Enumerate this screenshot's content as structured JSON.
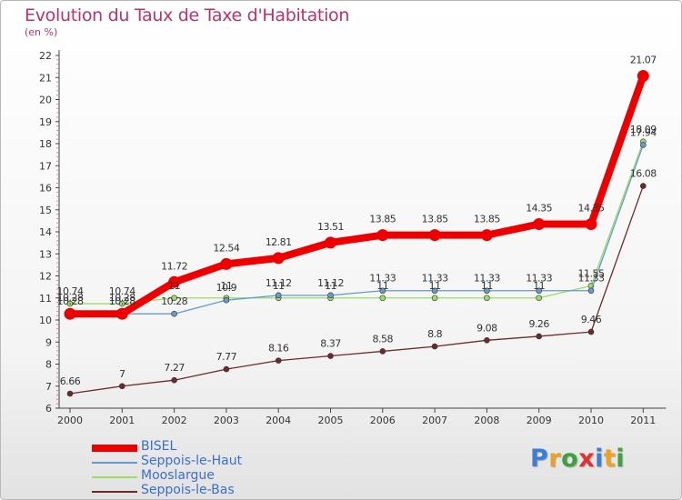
{
  "title": "Evolution du Taux de Taxe d'Habitation",
  "subtitle": "(en %)",
  "chart_data": {
    "type": "line",
    "x": [
      "2000",
      "2001",
      "2002",
      "2003",
      "2004",
      "2005",
      "2006",
      "2007",
      "2008",
      "2009",
      "2010",
      "2011"
    ],
    "ylim": [
      6,
      22
    ],
    "yticks": [
      "6",
      "7",
      "8",
      "9",
      "10",
      "11",
      "12",
      "13",
      "14",
      "15",
      "16",
      "17",
      "18",
      "19",
      "20",
      "21",
      "22"
    ],
    "grid": false,
    "legend_position": "bottom-left",
    "series": [
      {
        "name": "Seppois-le-Bas",
        "color": "#6e2a2a",
        "values": [
          6.66,
          7,
          7.27,
          7.77,
          8.16,
          8.37,
          8.58,
          8.8,
          9.08,
          9.26,
          9.46,
          16.08
        ],
        "labels": [
          "6.66",
          "7",
          "7.27",
          "7.77",
          "8.16",
          "8.37",
          "8.58",
          "8.8",
          "9.08",
          "9.26",
          "9.46",
          "16.08"
        ]
      },
      {
        "name": "Mooslargue",
        "color": "#99dd66",
        "values": [
          10.74,
          10.74,
          11,
          11,
          11,
          11,
          11,
          11,
          11,
          11,
          11.55,
          18.09
        ],
        "labels": [
          "10.74",
          "10.74",
          "11",
          "11",
          "11",
          "11",
          "11",
          "11",
          "11",
          "11",
          "11.55",
          "18.09"
        ]
      },
      {
        "name": "Seppois-le-Haut",
        "color": "#6699cc",
        "values": [
          10.28,
          10.28,
          10.28,
          10.9,
          11.12,
          11.12,
          11.33,
          11.33,
          11.33,
          11.33,
          11.33,
          17.94
        ],
        "labels": [
          "10.28",
          "10.28",
          "10.28",
          "10.9",
          "11.12",
          "11.12",
          "11.33",
          "11.33",
          "11.33",
          "11.33",
          "11.33",
          "17.94"
        ]
      },
      {
        "name": "BISEL",
        "color": "#ee0000",
        "values": [
          10.28,
          10.28,
          11.72,
          12.54,
          12.81,
          13.51,
          13.85,
          13.85,
          13.85,
          14.35,
          14.35,
          21.07
        ],
        "labels": [
          "10.28",
          "10.28",
          "11.72",
          "12.54",
          "12.81",
          "13.51",
          "13.85",
          "13.85",
          "13.85",
          "14.35",
          "14.35",
          "21.07"
        ]
      }
    ]
  },
  "legend": [
    {
      "label": "BISEL",
      "color": "#ee0000"
    },
    {
      "label": "Seppois-le-Haut",
      "color": "#6699cc"
    },
    {
      "label": "Mooslargue",
      "color": "#99dd66"
    },
    {
      "label": "Seppois-le-Bas",
      "color": "#6e2a2a"
    }
  ],
  "logo": {
    "letters": [
      "P",
      "r",
      "o",
      "x",
      "i",
      "t",
      "i"
    ],
    "colors": [
      "#3a7fd5",
      "#f0a020",
      "#3fa03f",
      "#e03030",
      "#3a7fd5",
      "#f0a020",
      "#3fa03f"
    ]
  }
}
